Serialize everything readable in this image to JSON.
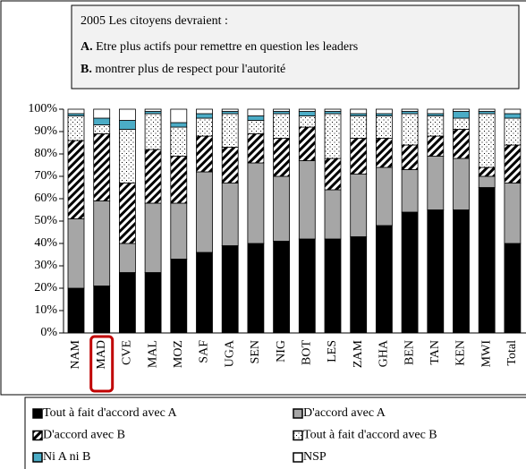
{
  "chart_data": {
    "type": "stacked_bar",
    "title": "2005   Les citoyens devraient :",
    "statements": [
      {
        "key": "A.",
        "text": "Etre plus actifs pour remettre en question les leaders"
      },
      {
        "key": "B.",
        "text": "montrer plus de respect pour l'autorité"
      }
    ],
    "categories": [
      "NAM",
      "MAD",
      "CVE",
      "MAL",
      "MOZ",
      "SAF",
      "UGA",
      "SEN",
      "NIG",
      "BOT",
      "LES",
      "ZAM",
      "GHA",
      "BEN",
      "TAN",
      "KEN",
      "MWI",
      "Total"
    ],
    "highlight": "MAD",
    "series": [
      {
        "name": "Tout à fait d'accord avec A",
        "color": "#000000",
        "values": [
          20,
          21,
          27,
          27,
          33,
          36,
          39,
          40,
          41,
          42,
          42,
          43,
          48,
          54,
          55,
          55,
          65,
          40
        ]
      },
      {
        "name": "D'accord avec A",
        "color": "#a6a6a6",
        "values": [
          31,
          38,
          13,
          31,
          25,
          36,
          28,
          36,
          29,
          35,
          22,
          28,
          26,
          19,
          24,
          23,
          5,
          27
        ]
      },
      {
        "name": "D'accord avec B",
        "color": "#ffffff",
        "pattern": "hatch",
        "values": [
          35,
          30,
          27,
          24,
          21,
          16,
          16,
          13,
          17,
          15,
          14,
          16,
          13,
          11,
          9,
          13,
          4,
          17
        ]
      },
      {
        "name": "Tout à fait d'accord avec B",
        "color": "#ffffff",
        "pattern": "dots",
        "values": [
          11,
          4,
          24,
          16,
          13,
          8,
          15,
          6,
          11,
          5,
          20,
          10,
          10,
          14,
          9,
          5,
          24,
          12
        ]
      },
      {
        "name": "Ni A ni B",
        "color": "#4bacc6",
        "values": [
          1,
          3,
          4,
          1,
          2,
          2,
          1,
          2,
          1,
          2,
          1,
          1,
          1,
          1,
          1,
          3,
          1,
          2
        ]
      },
      {
        "name": "NSP",
        "color": "#ffffff",
        "values": [
          2,
          4,
          5,
          1,
          6,
          2,
          1,
          3,
          1,
          1,
          1,
          2,
          2,
          1,
          2,
          1,
          1,
          2
        ]
      }
    ],
    "ylim": [
      0,
      100
    ],
    "yticks": [
      {
        "value": 0,
        "label": "0%"
      },
      {
        "value": 10,
        "label": "10%"
      },
      {
        "value": 20,
        "label": "20%"
      },
      {
        "value": 30,
        "label": "30%"
      },
      {
        "value": 40,
        "label": "40%"
      },
      {
        "value": 50,
        "label": "50%"
      },
      {
        "value": 60,
        "label": "60%"
      },
      {
        "value": 70,
        "label": "70%"
      },
      {
        "value": 80,
        "label": "80%"
      },
      {
        "value": 90,
        "label": "90%"
      },
      {
        "value": 100,
        "label": "100%"
      }
    ],
    "grid": false
  }
}
